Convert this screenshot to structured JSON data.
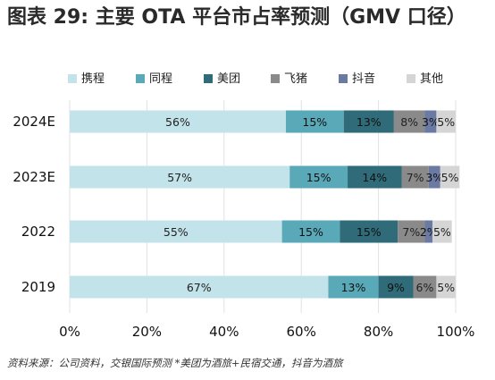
{
  "title": "图表 29: 主要 OTA 平台市占率预测（GMV 口径）",
  "source": "资料来源：公司资料，交银国际预测 *美团为酒旅+民宿交通，抖音为酒旅",
  "chart_data": {
    "type": "bar",
    "orientation": "horizontal",
    "stacked": true,
    "title": "图表 29: 主要 OTA 平台市占率预测（GMV 口径）",
    "categories": [
      "2024E",
      "2023E",
      "2022",
      "2019"
    ],
    "xlim": [
      0,
      100
    ],
    "xticks": [
      "0%",
      "20%",
      "40%",
      "60%",
      "80%",
      "100%"
    ],
    "legend_position": "top",
    "grid": true,
    "series": [
      {
        "name": "携程",
        "color": "#c3e3ea",
        "values": [
          56,
          57,
          55,
          67
        ],
        "labels": [
          "56%",
          "57%",
          "55%",
          "67%"
        ]
      },
      {
        "name": "同程",
        "color": "#5aa9b8",
        "values": [
          15,
          15,
          15,
          13
        ],
        "labels": [
          "15%",
          "15%",
          "15%",
          "13%"
        ]
      },
      {
        "name": "美团",
        "color": "#2f6b78",
        "values": [
          13,
          14,
          15,
          9
        ],
        "labels": [
          "13%",
          "14%",
          "15%",
          "9%"
        ]
      },
      {
        "name": "飞猪",
        "color": "#8a8a8a",
        "values": [
          8,
          7,
          7,
          6
        ],
        "labels": [
          "8%",
          "7%",
          "7%",
          "6%"
        ]
      },
      {
        "name": "抖音",
        "color": "#6b7aa3",
        "values": [
          3,
          3,
          2,
          0
        ],
        "labels": [
          "3%",
          "3%",
          "2%",
          ""
        ]
      },
      {
        "name": "其他",
        "color": "#d5d5d5",
        "values": [
          5,
          5,
          5,
          5
        ],
        "labels": [
          "5%",
          "5%",
          "5%",
          "5%"
        ]
      }
    ]
  }
}
